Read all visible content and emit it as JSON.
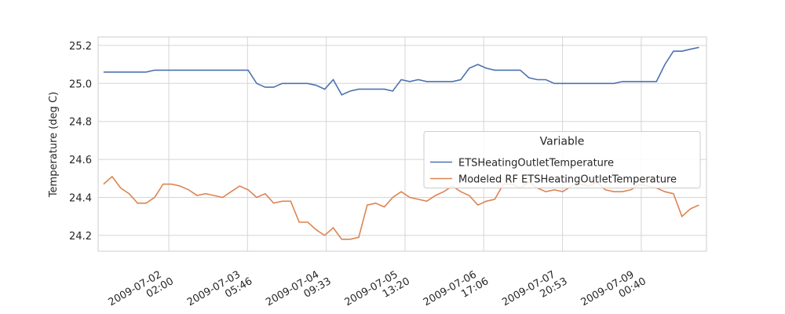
{
  "chart_data": {
    "type": "line",
    "y_label": "Temperature (deg C)",
    "legend_title": "Variable",
    "legend_position": "center right",
    "grid": true,
    "x": [
      "2009-07-01 03:00",
      "2009-07-01 06:00",
      "2009-07-01 09:00",
      "2009-07-01 12:00",
      "2009-07-01 15:00",
      "2009-07-01 18:00",
      "2009-07-01 21:00",
      "2009-07-02 00:00",
      "2009-07-02 03:00",
      "2009-07-02 06:00",
      "2009-07-02 09:00",
      "2009-07-02 12:00",
      "2009-07-02 15:00",
      "2009-07-02 18:00",
      "2009-07-02 21:00",
      "2009-07-03 00:00",
      "2009-07-03 03:00",
      "2009-07-03 06:00",
      "2009-07-03 09:00",
      "2009-07-03 12:00",
      "2009-07-03 15:00",
      "2009-07-03 18:00",
      "2009-07-03 21:00",
      "2009-07-04 00:00",
      "2009-07-04 03:00",
      "2009-07-04 06:00",
      "2009-07-04 09:00",
      "2009-07-04 12:00",
      "2009-07-04 15:00",
      "2009-07-04 18:00",
      "2009-07-04 21:00",
      "2009-07-05 00:00",
      "2009-07-05 03:00",
      "2009-07-05 06:00",
      "2009-07-05 09:00",
      "2009-07-05 12:00",
      "2009-07-05 15:00",
      "2009-07-05 18:00",
      "2009-07-05 21:00",
      "2009-07-06 00:00",
      "2009-07-06 03:00",
      "2009-07-06 06:00",
      "2009-07-06 09:00",
      "2009-07-06 12:00",
      "2009-07-06 15:00",
      "2009-07-06 18:00",
      "2009-07-06 21:00",
      "2009-07-07 00:00",
      "2009-07-07 03:00",
      "2009-07-07 06:00",
      "2009-07-07 09:00",
      "2009-07-07 12:00",
      "2009-07-07 15:00",
      "2009-07-07 18:00",
      "2009-07-07 21:00",
      "2009-07-08 00:00",
      "2009-07-08 03:00",
      "2009-07-08 06:00",
      "2009-07-08 09:00",
      "2009-07-08 12:00",
      "2009-07-08 15:00",
      "2009-07-08 18:00",
      "2009-07-08 21:00",
      "2009-07-09 00:00",
      "2009-07-09 03:00",
      "2009-07-09 06:00",
      "2009-07-09 09:00",
      "2009-07-09 12:00",
      "2009-07-09 15:00",
      "2009-07-09 18:00",
      "2009-07-09 21:00"
    ],
    "series": [
      {
        "name": "ETSHeatingOutletTemperature",
        "color": "#4c72b0",
        "values": [
          25.06,
          25.06,
          25.06,
          25.06,
          25.06,
          25.06,
          25.07,
          25.07,
          25.07,
          25.07,
          25.07,
          25.07,
          25.07,
          25.07,
          25.07,
          25.07,
          25.07,
          25.07,
          25.0,
          24.98,
          24.98,
          25.0,
          25.0,
          25.0,
          25.0,
          24.99,
          24.97,
          25.02,
          24.94,
          24.96,
          24.97,
          24.97,
          24.97,
          24.97,
          24.96,
          25.02,
          25.01,
          25.02,
          25.01,
          25.01,
          25.01,
          25.01,
          25.02,
          25.08,
          25.1,
          25.08,
          25.07,
          25.07,
          25.07,
          25.07,
          25.03,
          25.02,
          25.02,
          25.0,
          25.0,
          25.0,
          25.0,
          25.0,
          25.0,
          25.0,
          25.0,
          25.01,
          25.01,
          25.01,
          25.01,
          25.01,
          25.1,
          25.17,
          25.17,
          25.18,
          25.19
        ]
      },
      {
        "name": "Modeled RF ETSHeatingOutletTemperature",
        "color": "#dd8452",
        "values": [
          24.47,
          24.51,
          24.45,
          24.42,
          24.37,
          24.37,
          24.4,
          24.47,
          24.47,
          24.46,
          24.44,
          24.41,
          24.42,
          24.41,
          24.4,
          24.43,
          24.46,
          24.44,
          24.4,
          24.42,
          24.37,
          24.38,
          24.38,
          24.27,
          24.27,
          24.23,
          24.2,
          24.24,
          24.18,
          24.18,
          24.19,
          24.36,
          24.37,
          24.35,
          24.4,
          24.43,
          24.4,
          24.39,
          24.38,
          24.41,
          24.43,
          24.46,
          24.43,
          24.41,
          24.36,
          24.38,
          24.39,
          24.47,
          24.47,
          24.45,
          24.48,
          24.45,
          24.43,
          24.44,
          24.43,
          24.46,
          24.47,
          24.46,
          24.48,
          24.44,
          24.43,
          24.43,
          24.44,
          24.47,
          24.46,
          24.45,
          24.43,
          24.42,
          24.3,
          24.34,
          24.36
        ]
      }
    ],
    "xlim": [
      "2009-07-01 01:05",
      "2009-07-09 23:40"
    ],
    "xticks": [
      "2009-07-02 02:00",
      "2009-07-03 05:46",
      "2009-07-04 09:33",
      "2009-07-05 13:20",
      "2009-07-06 17:06",
      "2009-07-07 20:53",
      "2009-07-09 00:40"
    ],
    "ylim": [
      24.117,
      25.245
    ],
    "yticks": [
      24.2,
      24.4,
      24.6,
      24.8,
      {
        "value": 25,
        "label": "25.0"
      },
      25.2
    ]
  }
}
